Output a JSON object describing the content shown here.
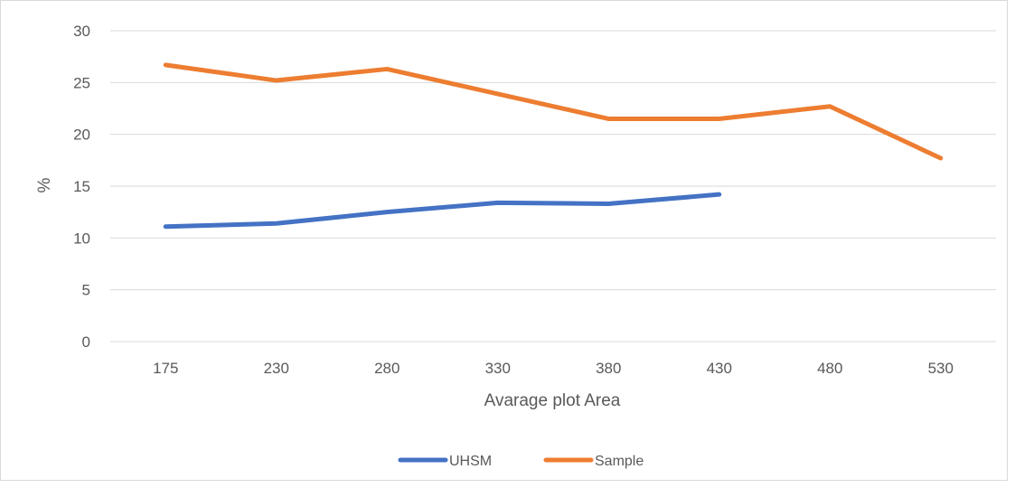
{
  "chart_data": {
    "type": "line",
    "title": "",
    "xlabel": "Avarage plot Area",
    "ylabel": "%",
    "categories": [
      "175",
      "230",
      "280",
      "330",
      "380",
      "430",
      "480",
      "530"
    ],
    "ylim": [
      0,
      30
    ],
    "yticks": [
      0,
      5,
      10,
      15,
      20,
      25,
      30
    ],
    "grid": true,
    "legend_position": "bottom",
    "series": [
      {
        "name": "UHSM",
        "color": "#4472c4",
        "values": [
          11.1,
          11.4,
          12.5,
          13.4,
          13.3,
          14.2,
          null,
          null
        ]
      },
      {
        "name": "Sample",
        "color": "#ed7d31",
        "values": [
          26.7,
          25.2,
          26.3,
          23.9,
          21.5,
          21.5,
          22.7,
          17.7
        ]
      }
    ]
  }
}
